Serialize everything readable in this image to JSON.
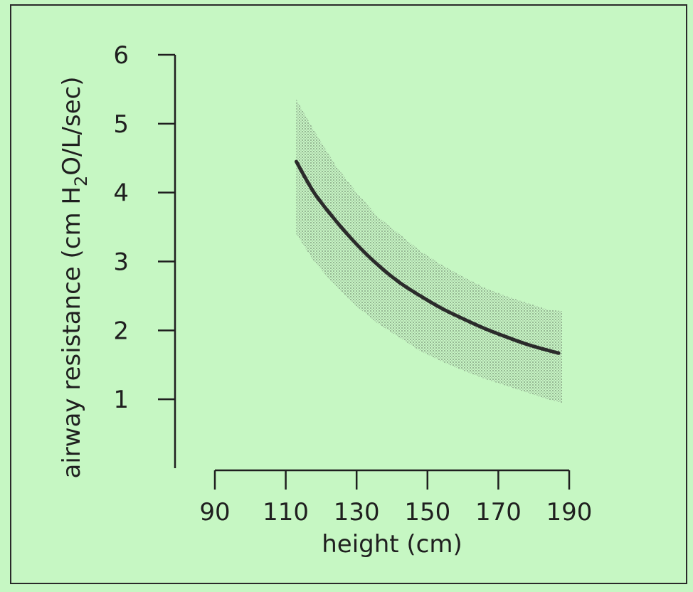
{
  "chart_data": {
    "type": "line",
    "xlabel": "height (cm)",
    "ylabel_main": "airway resistance (cm H",
    "ylabel_sub": "2",
    "ylabel_tail": "O/L/sec)",
    "xlim": [
      90,
      190
    ],
    "ylim": [
      0,
      6
    ],
    "xticks": [
      90,
      110,
      130,
      150,
      170,
      190
    ],
    "yticks": [
      1,
      2,
      3,
      4,
      5,
      6
    ],
    "x_tick_labels": [
      "90",
      "110",
      "130",
      "150",
      "170",
      "190"
    ],
    "y_tick_labels": [
      "1",
      "2",
      "3",
      "4",
      "5",
      "6"
    ],
    "grid": false,
    "legend": "none",
    "series": [
      {
        "role": "mean",
        "x": [
          113,
          118,
          124,
          130,
          136,
          142,
          148,
          154,
          160,
          166,
          172,
          178,
          184,
          187
        ],
        "y": [
          4.45,
          4.0,
          3.6,
          3.25,
          2.95,
          2.7,
          2.5,
          2.32,
          2.17,
          2.03,
          1.91,
          1.8,
          1.71,
          1.67
        ]
      }
    ],
    "band": {
      "role": "normal range",
      "x": [
        113,
        118,
        124,
        130,
        136,
        142,
        148,
        154,
        160,
        166,
        172,
        178,
        184,
        188
      ],
      "upper": [
        5.35,
        4.9,
        4.4,
        4.0,
        3.65,
        3.4,
        3.15,
        2.95,
        2.78,
        2.62,
        2.5,
        2.4,
        2.3,
        2.28
      ],
      "lower": [
        3.4,
        3.0,
        2.65,
        2.35,
        2.1,
        1.9,
        1.7,
        1.55,
        1.42,
        1.3,
        1.2,
        1.1,
        1.0,
        0.95
      ]
    },
    "colors": {
      "background": "#c6f7c3",
      "line": "#2b2b2b",
      "band": "#8a9a88"
    }
  }
}
